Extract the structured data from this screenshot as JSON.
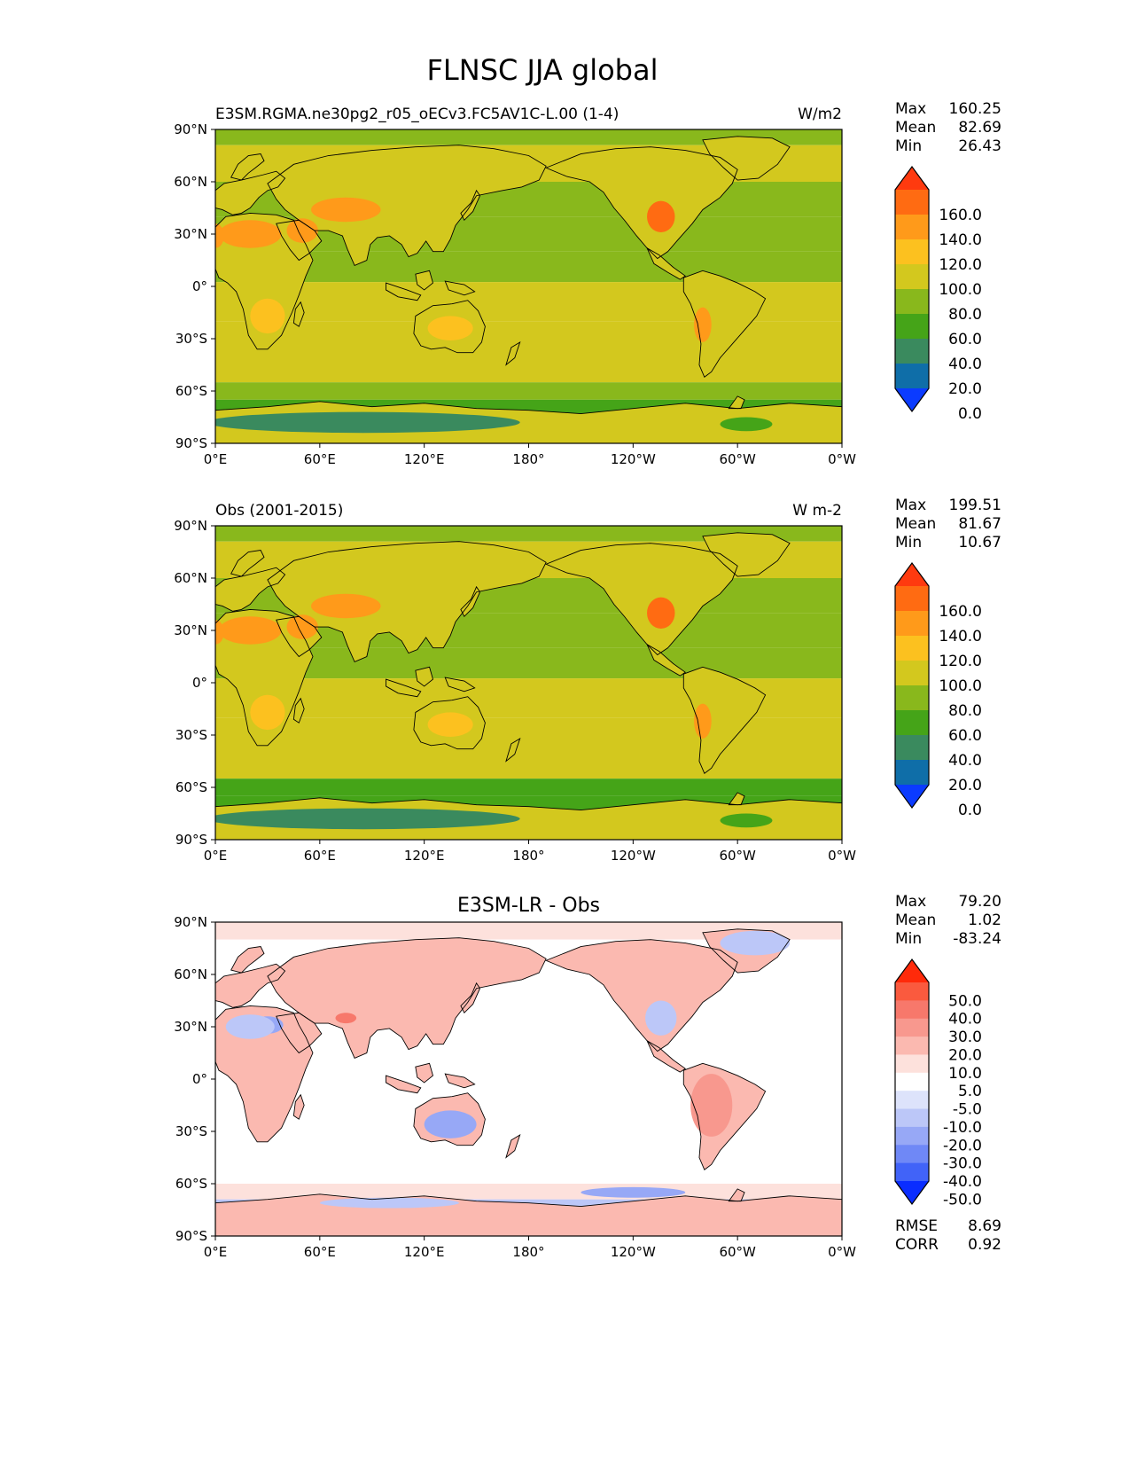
{
  "figure": {
    "title": "FLNSC JJA global"
  },
  "axes": {
    "x_ticks": [
      "0°E",
      "60°E",
      "120°E",
      "180°",
      "120°W",
      "60°W",
      "0°W"
    ],
    "y_ticks": [
      "90°N",
      "60°N",
      "30°N",
      "0°",
      "30°S",
      "60°S",
      "90°S"
    ]
  },
  "panels": [
    {
      "left_title": "E3SM.RGMA.ne30pg2_r05_oECv3.FC5AV1C-L.00 (1-4)",
      "center_title": "",
      "right_title": "W/m2",
      "stats": [
        {
          "label": "Max",
          "value": "160.25"
        },
        {
          "label": "Mean",
          "value": "82.69"
        },
        {
          "label": "Min",
          "value": "26.43"
        }
      ],
      "colorbar": {
        "labels": [
          "160.0",
          "140.0",
          "120.0",
          "100.0",
          "80.0",
          "60.0",
          "40.0",
          "20.0",
          "0.0"
        ],
        "colors": [
          "#ff3a0f",
          "#ff6b12",
          "#ff9a1a",
          "#fcc11f",
          "#d3c81e",
          "#89b81c",
          "#45a418",
          "#3a8a5e",
          "#0f6ea8",
          "#0b3bff"
        ]
      },
      "field": {
        "ocean_value": 82,
        "notes": "land heating highs over Sahara, Arabia, Tibet, SW North America; lows over Antarctica"
      }
    },
    {
      "left_title": "Obs (2001-2015)",
      "center_title": "",
      "right_title": "W m-2",
      "stats": [
        {
          "label": "Max",
          "value": "199.51"
        },
        {
          "label": "Mean",
          "value": "81.67"
        },
        {
          "label": "Min",
          "value": "10.67"
        }
      ],
      "colorbar": {
        "labels": [
          "160.0",
          "140.0",
          "120.0",
          "100.0",
          "80.0",
          "60.0",
          "40.0",
          "20.0",
          "0.0"
        ],
        "colors": [
          "#ff3a0f",
          "#ff6b12",
          "#ff9a1a",
          "#fcc11f",
          "#d3c81e",
          "#89b81c",
          "#45a418",
          "#3a8a5e",
          "#0f6ea8",
          "#0b3bff"
        ]
      },
      "field": {
        "ocean_value": 78,
        "notes": "observed field, sharper desert highs"
      }
    },
    {
      "left_title": "",
      "center_title": "E3SM-LR - Obs",
      "right_title": "",
      "stats": [
        {
          "label": "Max",
          "value": "79.20"
        },
        {
          "label": "Mean",
          "value": "1.02"
        },
        {
          "label": "Min",
          "value": "-83.24"
        }
      ],
      "colorbar": {
        "labels": [
          "50.0",
          "40.0",
          "30.0",
          "20.0",
          "10.0",
          "5.0",
          "-5.0",
          "-10.0",
          "-20.0",
          "-30.0",
          "-40.0",
          "-50.0"
        ],
        "colors": [
          "#ff2a0a",
          "#fa5a3e",
          "#f7786b",
          "#f8988e",
          "#fbb9b0",
          "#fde1dc",
          "#ffffff",
          "#dde3fb",
          "#bcc7f8",
          "#97a8f6",
          "#6f88f6",
          "#4163f8",
          "#0a2dff"
        ]
      },
      "field": {
        "ocean_value": 0,
        "notes": "difference map, mostly white ocean, red over land, blue over Sahara/Australia/Greenland"
      },
      "extra_stats": [
        {
          "label": "RMSE",
          "value": "8.69"
        },
        {
          "label": "CORR",
          "value": "0.92"
        }
      ]
    }
  ]
}
